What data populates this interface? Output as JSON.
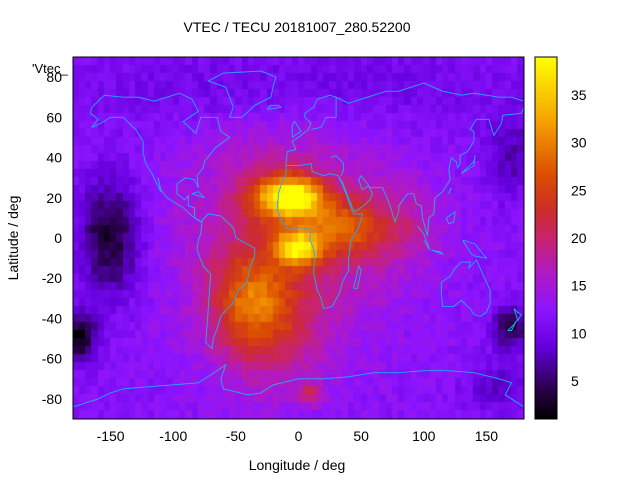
{
  "chart_data": {
    "type": "heatmap",
    "title": "VTEC / TECU 20181007_280.52200",
    "xlabel": "Longitude / deg",
    "ylabel": "Latitude / deg",
    "series_label": "'Vtec_",
    "xlim": [
      -180,
      180
    ],
    "ylim": [
      -90,
      90
    ],
    "xticks": [
      -150,
      -100,
      -50,
      0,
      50,
      100,
      150
    ],
    "yticks": [
      -80,
      -60,
      -40,
      -20,
      0,
      20,
      40,
      60,
      80
    ],
    "xtick_labels": [
      "-150",
      "-100",
      "-50",
      "0",
      "50",
      "100",
      "150"
    ],
    "ytick_labels": [
      "-80",
      "-60",
      "-40",
      "-20",
      "0",
      "20",
      "40",
      "60",
      "80"
    ],
    "colorbar": {
      "range": [
        1,
        39
      ],
      "ticks": [
        5,
        10,
        15,
        20,
        25,
        30,
        35
      ],
      "tick_labels": [
        "5",
        "10",
        "15",
        "20",
        "25",
        "30",
        "35"
      ]
    },
    "grid": false,
    "colormap": "black-purple-red-orange-yellow",
    "anomaly_peaks": [
      {
        "lon": 0,
        "lat": 20,
        "vtec": 38
      },
      {
        "lon": 0,
        "lat": -5,
        "vtec": 38
      },
      {
        "lon": -20,
        "lat": 20,
        "vtec": 30
      },
      {
        "lon": 35,
        "lat": 5,
        "vtec": 24
      },
      {
        "lon": -40,
        "lat": -30,
        "vtec": 22
      },
      {
        "lon": 10,
        "lat": -78,
        "vtec": 22
      }
    ],
    "background_vtec": 12,
    "low_regions": [
      {
        "lon": -150,
        "lat": 0,
        "vtec": 3
      },
      {
        "lon": -175,
        "lat": -50,
        "vtec": 2
      },
      {
        "lon": 170,
        "lat": -45,
        "vtec": 4
      }
    ]
  }
}
